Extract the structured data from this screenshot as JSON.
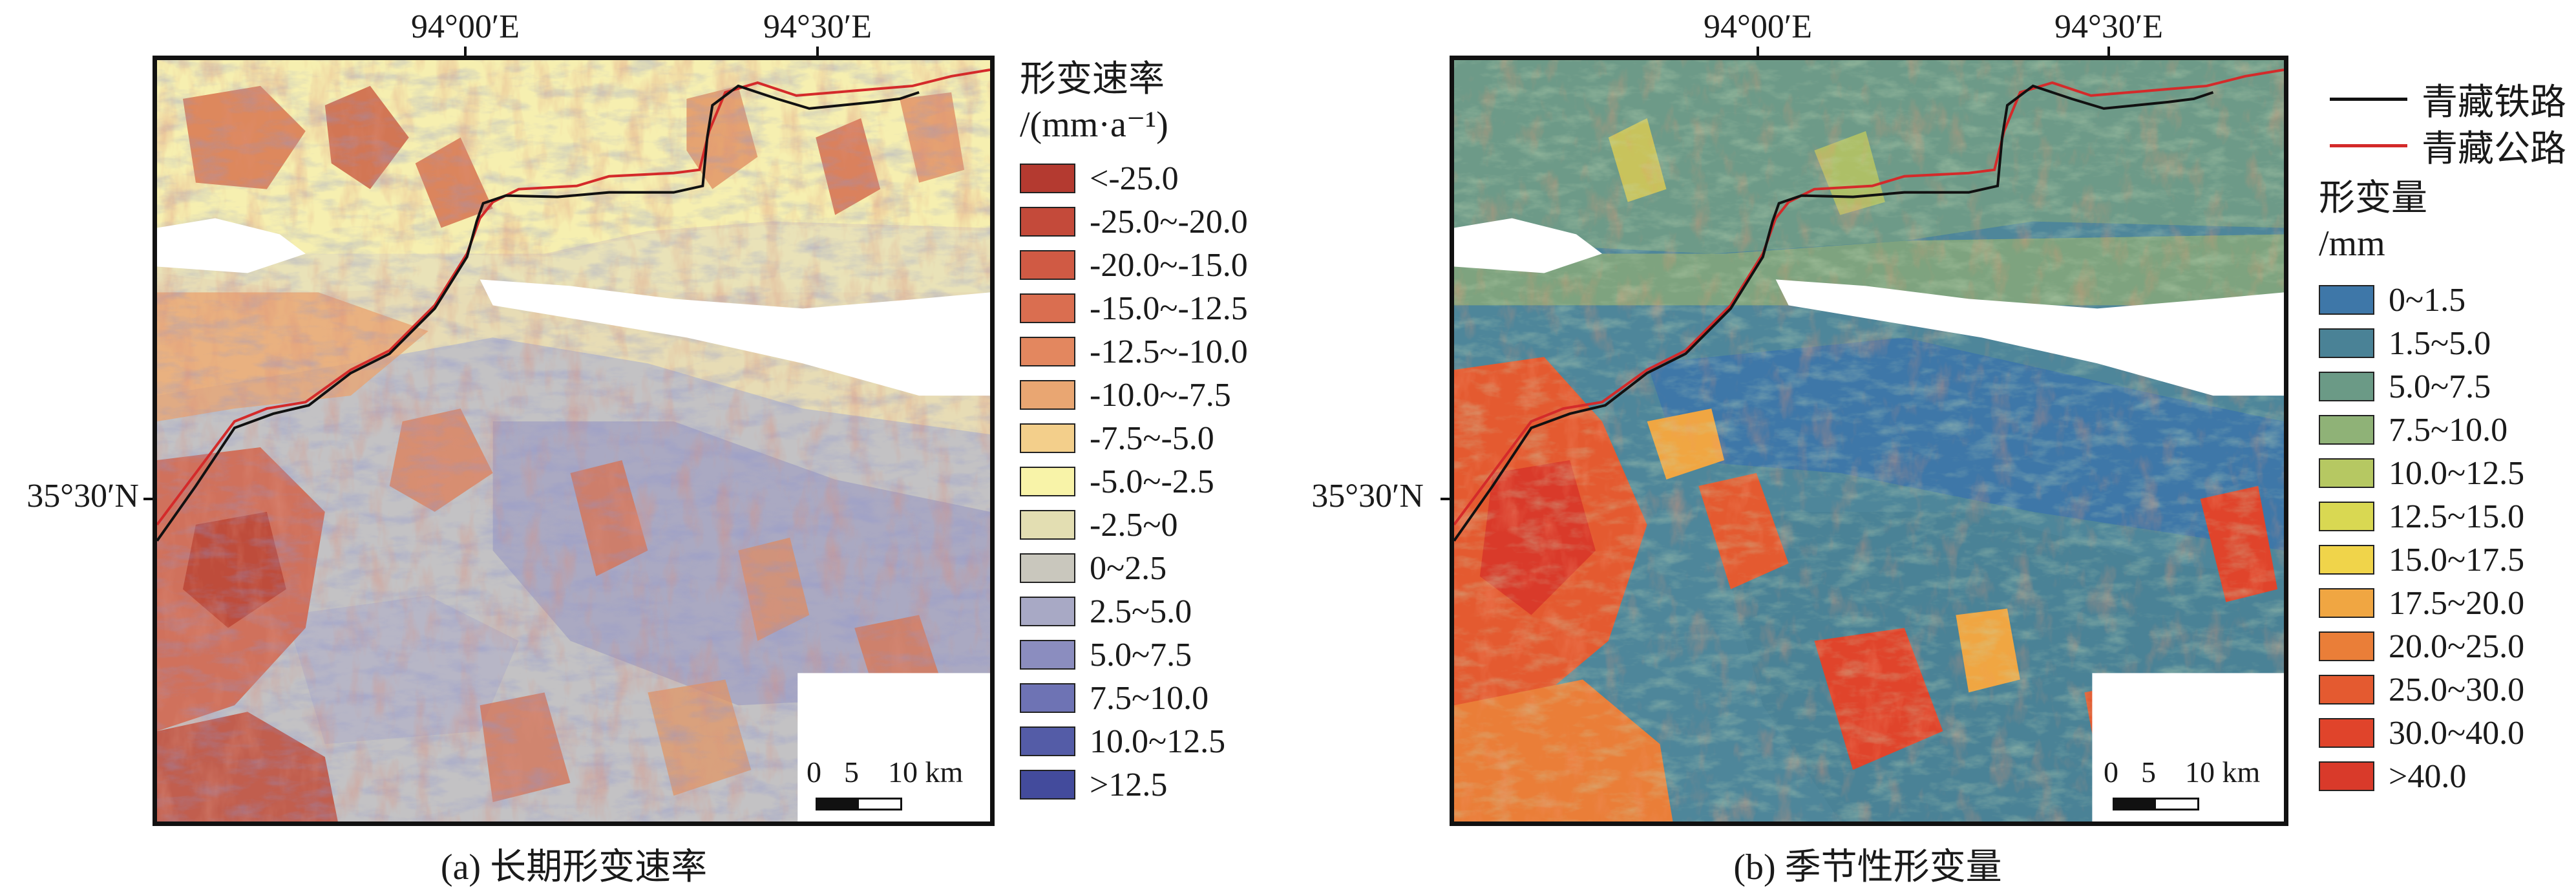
{
  "panels": [
    {
      "id": "a",
      "caption": "(a) 长期形变速率",
      "lon_labels": [
        "94°00′E",
        "94°30′E"
      ],
      "lat_label": "35°30′N",
      "scale": {
        "zero": "0",
        "five": "5",
        "ten": "10 km"
      },
      "legend_title_line1": "形变速率",
      "legend_title_line2": "/(mm·a⁻¹)",
      "legend": [
        {
          "label": "<-25.0",
          "color": "#b43a30"
        },
        {
          "label": "-25.0~-20.0",
          "color": "#c44a3a"
        },
        {
          "label": "-20.0~-15.0",
          "color": "#d05a44"
        },
        {
          "label": "-15.0~-12.5",
          "color": "#da6e50"
        },
        {
          "label": "-12.5~-10.0",
          "color": "#e3875f"
        },
        {
          "label": "-10.0~-7.5",
          "color": "#e9a672"
        },
        {
          "label": "-7.5~-5.0",
          "color": "#f3cf8b"
        },
        {
          "label": "-5.0~-2.5",
          "color": "#f8f3a8"
        },
        {
          "label": "-2.5~0",
          "color": "#e3deb2"
        },
        {
          "label": "0~2.5",
          "color": "#c9c7bd"
        },
        {
          "label": "2.5~5.0",
          "color": "#a8a9c5"
        },
        {
          "label": "5.0~7.5",
          "color": "#8b8dbf"
        },
        {
          "label": "7.5~10.0",
          "color": "#6e73b4"
        },
        {
          "label": "10.0~12.5",
          "color": "#545ca7"
        },
        {
          "label": ">12.5",
          "color": "#434b9c"
        }
      ]
    },
    {
      "id": "b",
      "caption": "(b) 季节性形变量",
      "lon_labels": [
        "94°00′E",
        "94°30′E"
      ],
      "lat_label": "35°30′N",
      "scale": {
        "zero": "0",
        "five": "5",
        "ten": "10 km"
      },
      "line_legend": [
        {
          "label": "青藏铁路",
          "color": "#111111"
        },
        {
          "label": "青藏公路",
          "color": "#d42a2a"
        }
      ],
      "legend_title_line1": "形变量",
      "legend_title_line2": "/mm",
      "legend": [
        {
          "label": "0~1.5",
          "color": "#3e77a8"
        },
        {
          "label": "1.5~5.0",
          "color": "#4a8296"
        },
        {
          "label": "5.0~7.5",
          "color": "#6b9a86"
        },
        {
          "label": "7.5~10.0",
          "color": "#8fb277"
        },
        {
          "label": "10.0~12.5",
          "color": "#b6c862"
        },
        {
          "label": "12.5~15.0",
          "color": "#d9d852"
        },
        {
          "label": "15.0~17.5",
          "color": "#f0d44a"
        },
        {
          "label": "17.5~20.0",
          "color": "#f0a642"
        },
        {
          "label": "20.0~25.0",
          "color": "#ea7e38"
        },
        {
          "label": "25.0~30.0",
          "color": "#e45a30"
        },
        {
          "label": "30.0~40.0",
          "color": "#e0442b"
        },
        {
          ">": "",
          "label": ">40.0",
          "color": "#d93a2a"
        }
      ]
    }
  ],
  "route_colors": {
    "railway": "#111111",
    "highway": "#d42a2a"
  }
}
